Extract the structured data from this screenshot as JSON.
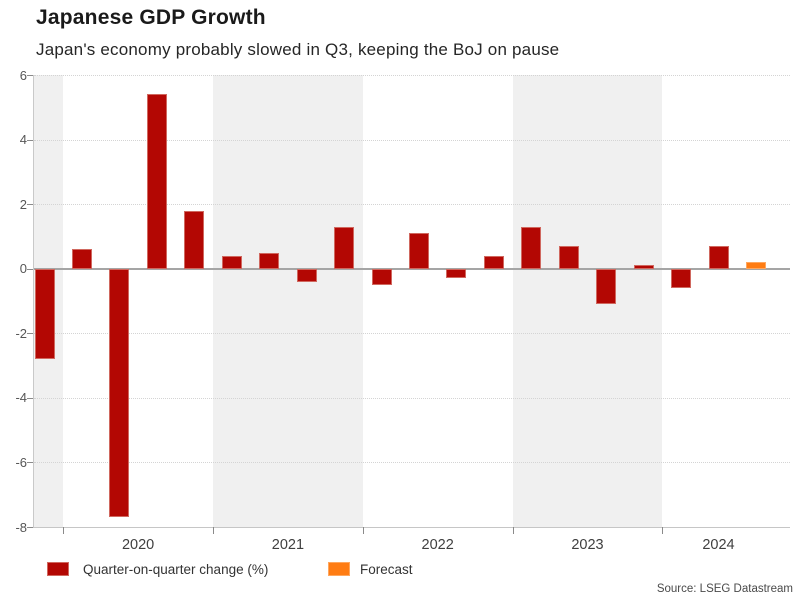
{
  "chart_data": {
    "type": "bar",
    "title": "Japanese GDP Growth",
    "subtitle": "Japan's economy probably slowed in Q3, keeping the BoJ on pause",
    "source": "Source: LSEG Datastream",
    "ylim": [
      -8,
      6
    ],
    "yticks": [
      6,
      4,
      2,
      0,
      -2,
      -4,
      -6,
      -8
    ],
    "grid": "dotted-horizontal",
    "legend_position": "bottom-left",
    "legend": {
      "actual": "Quarter-on-quarter change (%)",
      "forecast": "Forecast"
    },
    "colors": {
      "actual": "#b30703",
      "forecast": "#ff7c13",
      "shaded_band": "#f0f0f0"
    },
    "year_groups": [
      {
        "year": "",
        "shaded": true,
        "values": [
          -2.8
        ]
      },
      {
        "year": "2020",
        "shaded": false,
        "values": [
          0.6,
          -7.7,
          5.4,
          1.8
        ]
      },
      {
        "year": "2021",
        "shaded": true,
        "values": [
          0.4,
          0.5,
          -0.4,
          1.3
        ]
      },
      {
        "year": "2022",
        "shaded": false,
        "values": [
          -0.5,
          1.1,
          -0.3,
          0.4
        ]
      },
      {
        "year": "2023",
        "shaded": true,
        "values": [
          1.3,
          0.7,
          -1.1,
          0.1
        ]
      },
      {
        "year": "2024",
        "shaded": false,
        "values": [
          -0.6,
          0.7
        ],
        "forecast_values": [
          0.2
        ]
      }
    ]
  }
}
